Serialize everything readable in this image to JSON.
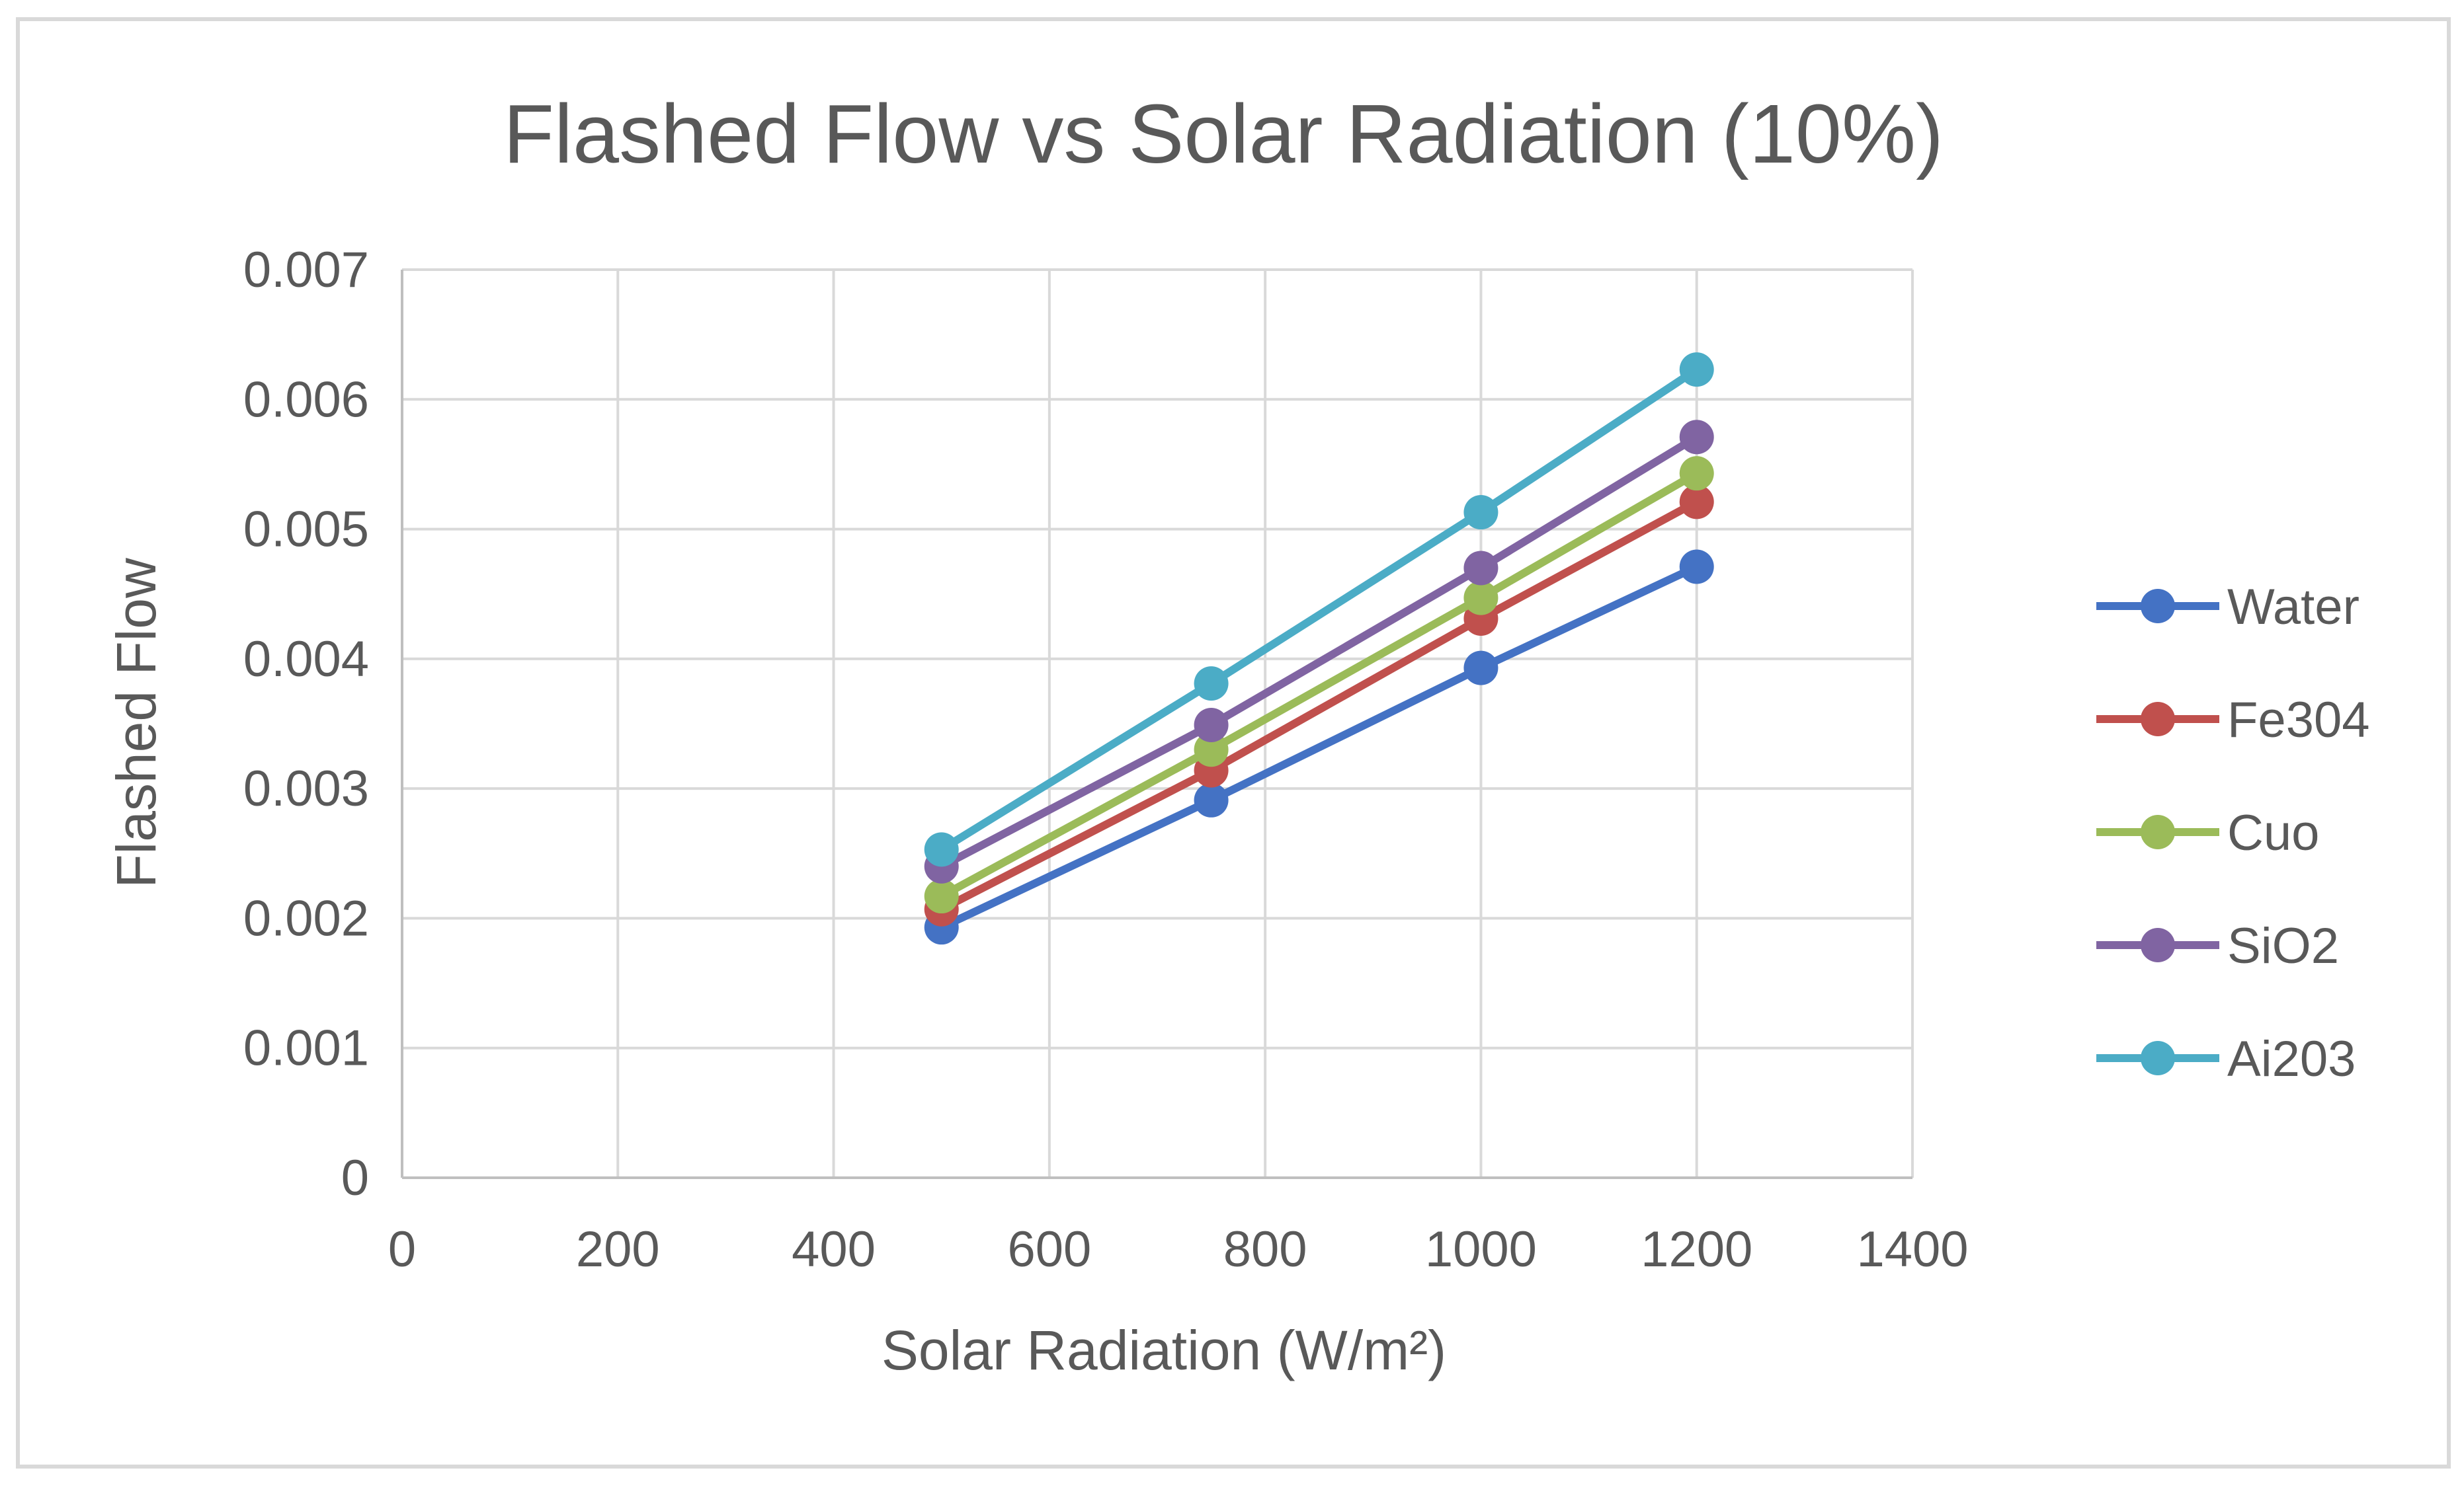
{
  "chart_data": {
    "type": "line",
    "title": "Flashed Flow vs Solar Radiation (10%)",
    "xlabel": "Solar Radiation (W/m²)",
    "ylabel": "Flashed Flow",
    "xlim": [
      0,
      1400
    ],
    "ylim": [
      0,
      0.007
    ],
    "x_ticks": [
      "0",
      "200",
      "400",
      "600",
      "800",
      "1000",
      "1200",
      "1400"
    ],
    "y_ticks": [
      "0",
      "0.001",
      "0.002",
      "0.003",
      "0.004",
      "0.005",
      "0.006",
      "0.007"
    ],
    "grid": true,
    "legend_position": "right",
    "x": [
      500,
      750,
      1000,
      1200
    ],
    "series": [
      {
        "name": "Water",
        "color": "#4472c4",
        "values": [
          0.00193,
          0.00291,
          0.00393,
          0.00471
        ]
      },
      {
        "name": "Fe304",
        "color": "#c0504d",
        "values": [
          0.00207,
          0.00314,
          0.00431,
          0.00521
        ]
      },
      {
        "name": "Cuo",
        "color": "#9bbb59",
        "values": [
          0.00217,
          0.0033,
          0.00447,
          0.00543
        ]
      },
      {
        "name": "SiO2",
        "color": "#8064a2",
        "values": [
          0.0024,
          0.00349,
          0.0047,
          0.00571
        ]
      },
      {
        "name": "Ai203",
        "color": "#4bacc6",
        "values": [
          0.00253,
          0.00381,
          0.00513,
          0.00623
        ]
      }
    ]
  }
}
